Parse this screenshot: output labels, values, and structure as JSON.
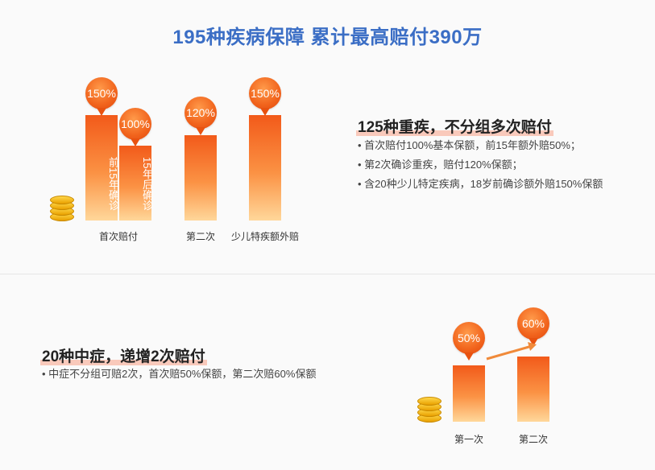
{
  "title": "195种疾病保障 累计最高赔付390万",
  "top_section": {
    "heading": "125种重疾，不分组多次赔付",
    "bullets": [
      "首次赔付100%基本保额，前15年额外赔50%；",
      "第2次确诊重疾，赔付120%保额；",
      "含20种少儿特定疾病，18岁前确诊额外赔150%保额"
    ],
    "bars": [
      {
        "percent": "150%",
        "inner_text": "前15年确诊"
      },
      {
        "percent": "100%",
        "inner_text": "15年后确诊"
      },
      {
        "percent": "120%",
        "inner_text": ""
      },
      {
        "percent": "150%",
        "inner_text": ""
      }
    ],
    "labels": [
      "首次赔付",
      "第二次",
      "少儿特疾额外赔"
    ]
  },
  "bottom_section": {
    "heading": "20种中症，递增2次赔付",
    "bullets": [
      "中症不分组可赔2次，首次赔50%保额，第二次赔60%保额"
    ],
    "bars": [
      {
        "percent": "50%"
      },
      {
        "percent": "60%"
      }
    ],
    "labels": [
      "第一次",
      "第二次"
    ]
  },
  "colors": {
    "title": "#3b6ec5",
    "bar_top": "#f25a1a",
    "bar_bottom": "#ffd79a",
    "highlight": "#f9c9bb"
  },
  "icons": [
    "coin-stack-icon",
    "arrow-right-icon"
  ]
}
